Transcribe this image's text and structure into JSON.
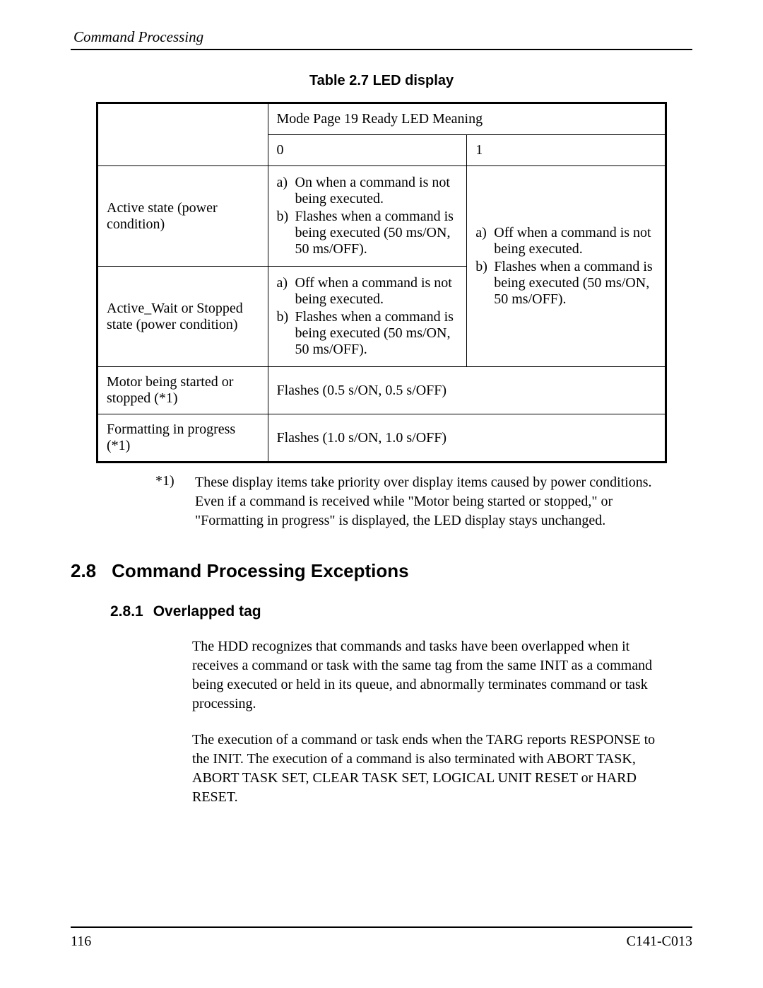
{
  "header": {
    "title": "Command Processing"
  },
  "table": {
    "caption": "Table 2.7  LED display",
    "mode_header": "Mode Page 19 Ready LED Meaning",
    "col0": "0",
    "col1": "1",
    "row1_label": "Active state (power condition)",
    "row2_label": "Active_Wait or Stopped state (power condition)",
    "row1_c0_a": "On when a command is not being executed.",
    "row1_c0_b": "Flashes when a command is being executed (50 ms/ON, 50 ms/OFF).",
    "row2_c0_a": "Off when a command is not being executed.",
    "row2_c0_b": "Flashes when a command is being executed (50 ms/ON, 50 ms/OFF).",
    "c1_a": "Off when a command is not being executed.",
    "c1_b": "Flashes when a command is being executed (50 ms/ON, 50 ms/OFF).",
    "row3_label": "Motor being started or stopped (*1)",
    "row3_val": "Flashes (0.5 s/ON, 0.5 s/OFF)",
    "row4_label": "Formatting in progress (*1)",
    "row4_val": "Flashes (1.0 s/ON, 1.0 s/OFF)",
    "lbl_a": "a)",
    "lbl_b": "b)"
  },
  "footnote": {
    "mark": "*1)",
    "text": "These display items take priority over display items caused by power conditions.  Even if a command is received while \"Motor being started or stopped,\" or \"Formatting in progress\" is displayed, the LED display stays unchanged."
  },
  "section": {
    "num": "2.8",
    "title": "Command Processing Exceptions",
    "sub_num": "2.8.1",
    "sub_title": "Overlapped tag"
  },
  "paras": {
    "p1": "The HDD recognizes that commands and tasks have been overlapped when it receives a command or task with the same tag from the same INIT as a command being executed or held in its queue, and abnormally terminates command or task processing.",
    "p2": "The execution of a command or task ends when the TARG reports RESPONSE to the INIT.  The execution of a command is also terminated with ABORT TASK, ABORT TASK SET, CLEAR TASK SET, LOGICAL UNIT RESET or HARD RESET."
  },
  "footer": {
    "page": "116",
    "doc": "C141-C013"
  }
}
